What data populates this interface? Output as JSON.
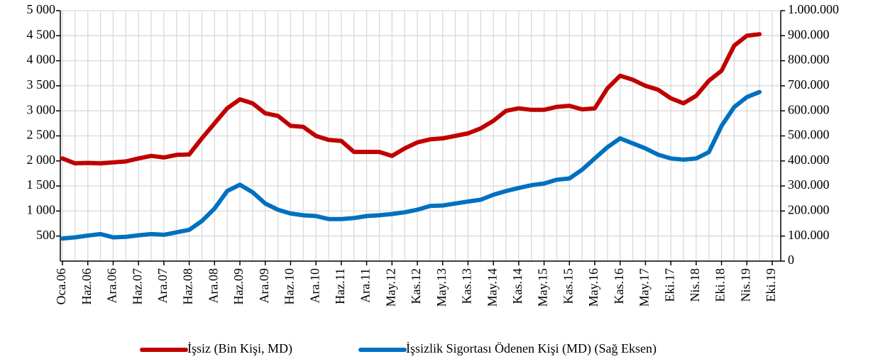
{
  "chart_data": {
    "type": "line",
    "categories": [
      "Oca.06",
      null,
      "Haz.06",
      null,
      "Ara.06",
      null,
      "Haz.07",
      null,
      "Ara.07",
      null,
      "Haz.08",
      null,
      "Ara.08",
      null,
      "Haz.09",
      null,
      "Ara.09",
      null,
      "Haz.10",
      null,
      "Ara.10",
      null,
      "Haz.11",
      null,
      "Ara.11",
      null,
      "May.12",
      null,
      "Kas.12",
      null,
      "May.13",
      null,
      "Kas.13",
      null,
      "May.14",
      null,
      "Kas.14",
      null,
      "May.15",
      null,
      "Kas.15",
      null,
      "May.16",
      null,
      "Kas.16",
      null,
      "May.17",
      null,
      "Eki.17",
      null,
      "Nis.18",
      null,
      "Eki.18",
      null,
      "Nis.19",
      null,
      "Eki.19"
    ],
    "series": [
      {
        "name": "İşsiz (Bin Kişi, MD)",
        "color": "#c00000",
        "values": [
          2050,
          1950,
          1960,
          1950,
          1970,
          1990,
          2050,
          2100,
          2070,
          2120,
          2130,
          2450,
          2750,
          3050,
          3230,
          3150,
          2950,
          2900,
          2700,
          2680,
          2500,
          2420,
          2400,
          2180,
          2180,
          2180,
          2100,
          2250,
          2370,
          2430,
          2450,
          2500,
          2550,
          2650,
          2800,
          3000,
          3050,
          3020,
          3020,
          3080,
          3100,
          3030,
          3050,
          3450,
          3700,
          3620,
          3500,
          3420,
          3250,
          3150,
          3300,
          3600,
          3800,
          4300,
          4500,
          4530,
          null
        ]
      },
      {
        "name": "İşsizlik Sigortası Ödenen Kişi (MD) (Sağ Eksen)",
        "color": "#0070c0",
        "axis": "y2",
        "values": [
          90000,
          95000,
          102000,
          108000,
          95000,
          97000,
          103000,
          108000,
          105000,
          115000,
          125000,
          160000,
          210000,
          280000,
          305000,
          275000,
          230000,
          205000,
          190000,
          183000,
          180000,
          168000,
          168000,
          172000,
          180000,
          183000,
          188000,
          195000,
          205000,
          220000,
          222000,
          230000,
          238000,
          245000,
          265000,
          280000,
          292000,
          303000,
          310000,
          325000,
          330000,
          365000,
          410000,
          455000,
          490000,
          470000,
          450000,
          425000,
          410000,
          405000,
          410000,
          435000,
          540000,
          615000,
          655000,
          675000,
          null
        ]
      }
    ],
    "ylim": [
      0,
      5000
    ],
    "yticks": [
      500,
      {
        "value": 1000,
        "label": "1 000"
      },
      {
        "value": 1500,
        "label": "1 500"
      },
      {
        "value": 2000,
        "label": "2 000"
      },
      {
        "value": 2500,
        "label": "2 500"
      },
      {
        "value": 3000,
        "label": "3 000"
      },
      {
        "value": 3500,
        "label": "3 500"
      },
      {
        "value": 4000,
        "label": "4 000"
      },
      {
        "value": 4500,
        "label": "4 500"
      },
      {
        "value": 5000,
        "label": "5 000"
      }
    ],
    "y2lim": [
      0,
      1000000
    ],
    "y2ticks": [
      0,
      {
        "value": 100000,
        "label": "100.000"
      },
      {
        "value": 200000,
        "label": "200.000"
      },
      {
        "value": 300000,
        "label": "300.000"
      },
      {
        "value": 400000,
        "label": "400.000"
      },
      {
        "value": 500000,
        "label": "500.000"
      },
      {
        "value": 600000,
        "label": "600.000"
      },
      {
        "value": 700000,
        "label": "700.000"
      },
      {
        "value": 800000,
        "label": "800.000"
      },
      {
        "value": 900000,
        "label": "900.000"
      },
      {
        "value": 1000000,
        "label": "1.000.000"
      }
    ],
    "grid": true,
    "legend": "bottom"
  }
}
